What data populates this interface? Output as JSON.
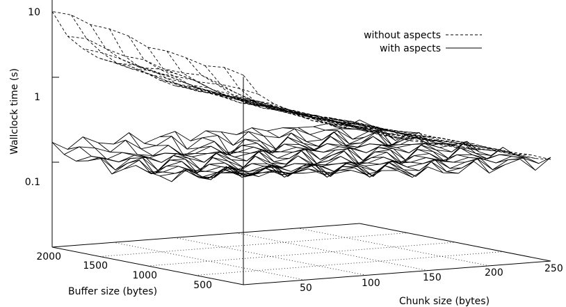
{
  "chart_data": {
    "type": "surface3d",
    "zlabel": "Wallclock time (s)",
    "xlabel": "Buffer size (bytes)",
    "ylabel": "Chunk size (bytes)",
    "z_scale": "log",
    "zlim": [
      0.01,
      10
    ],
    "z_ticks": [
      {
        "value": 0.1,
        "label": "0.1"
      },
      {
        "value": 1,
        "label": "1"
      },
      {
        "value": 10,
        "label": "10"
      }
    ],
    "x_ticks": [
      {
        "value": 500,
        "label": "500"
      },
      {
        "value": 1000,
        "label": "1000"
      },
      {
        "value": 1500,
        "label": "1500"
      },
      {
        "value": 2000,
        "label": "2000"
      }
    ],
    "y_ticks": [
      {
        "value": 50,
        "label": "50"
      },
      {
        "value": 100,
        "label": "100"
      },
      {
        "value": 150,
        "label": "150"
      },
      {
        "value": 200,
        "label": "200"
      },
      {
        "value": 250,
        "label": "250"
      }
    ],
    "xlim": [
      0,
      2000
    ],
    "ylim": [
      0,
      250
    ],
    "grid": true,
    "legend_position": "top-right",
    "series": [
      {
        "name": "without aspects",
        "style": "dashed",
        "description": "time falls from about 6 s at small chunk sizes and large buffers to about 0.15 s at large chunk sizes",
        "corner_values": {
          "x0_y0": 2.8,
          "x2000_y0": 6.0,
          "x0_y250": 0.16,
          "x2000_y250": 0.15
        }
      },
      {
        "name": "with aspects",
        "style": "solid",
        "description": "roughly flat near 0.12-0.2 s, with a ridge near 0.2 s at small buffer sizes",
        "corner_values": {
          "x0_y0": 0.2,
          "x2000_y0": 0.19,
          "x0_y250": 0.15,
          "x2000_y250": 0.15
        }
      }
    ]
  }
}
